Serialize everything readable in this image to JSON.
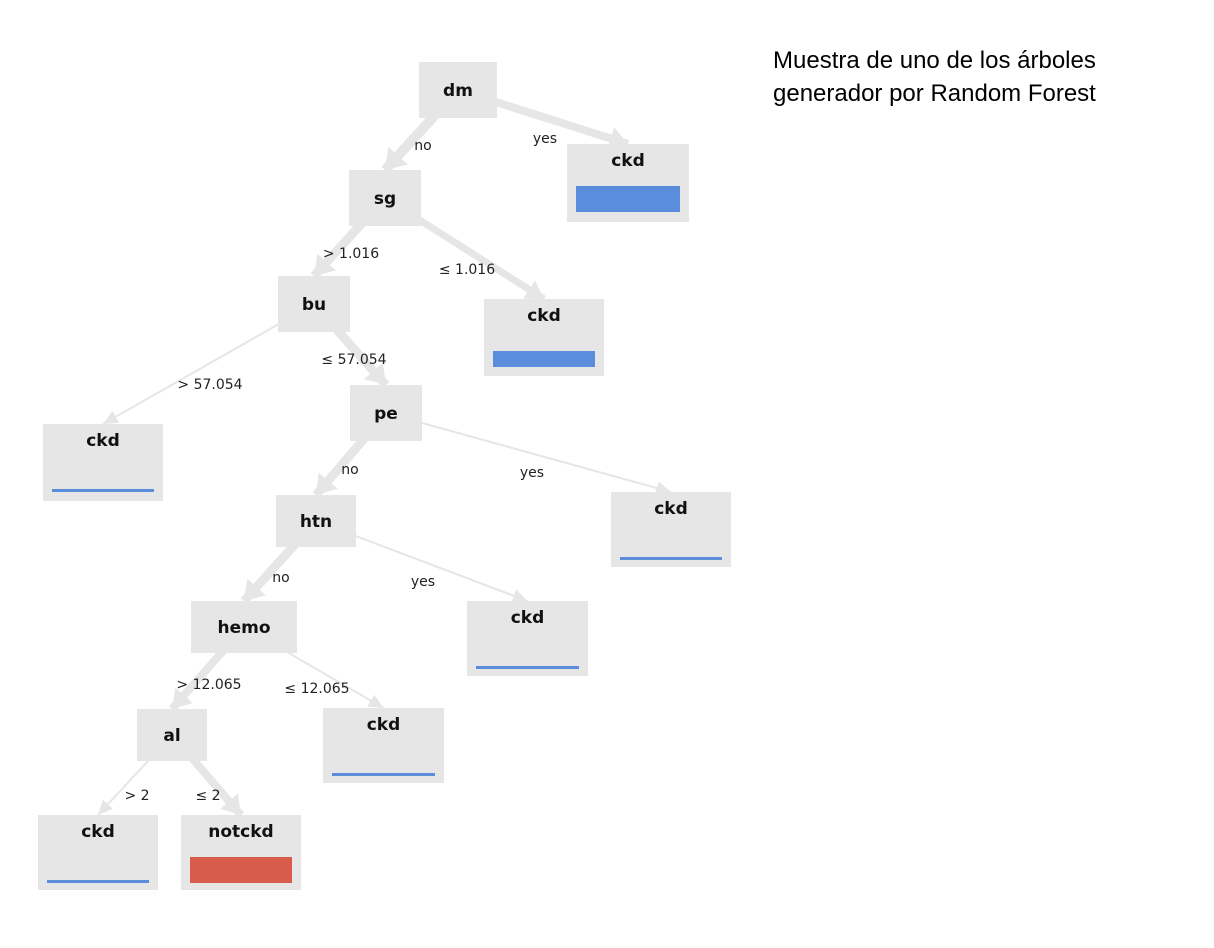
{
  "caption": {
    "line1": "Muestra de uno de los árboles",
    "line2": "generador por Random Forest"
  },
  "colors": {
    "node_bg": "#e6e6e6",
    "ckd_bar": "#5b8ddd",
    "notckd_bar": "#d95b4b",
    "edge": "#e6e6e6"
  },
  "tree": {
    "nodes": [
      {
        "id": "dm",
        "label": "dm",
        "kind": "split"
      },
      {
        "id": "sg",
        "label": "sg",
        "kind": "split"
      },
      {
        "id": "leaf_dm_yes",
        "label": "ckd",
        "kind": "leaf",
        "class": "ckd",
        "fill": 1.0
      },
      {
        "id": "bu",
        "label": "bu",
        "kind": "split"
      },
      {
        "id": "leaf_sg_le",
        "label": "ckd",
        "kind": "leaf",
        "class": "ckd",
        "fill": 0.6
      },
      {
        "id": "leaf_bu_gt",
        "label": "ckd",
        "kind": "leaf",
        "class": "ckd",
        "fill": 0.12
      },
      {
        "id": "pe",
        "label": "pe",
        "kind": "split"
      },
      {
        "id": "htn",
        "label": "htn",
        "kind": "split"
      },
      {
        "id": "leaf_pe_yes",
        "label": "ckd",
        "kind": "leaf",
        "class": "ckd",
        "fill": 0.12
      },
      {
        "id": "hemo",
        "label": "hemo",
        "kind": "split"
      },
      {
        "id": "leaf_htn_yes",
        "label": "ckd",
        "kind": "leaf",
        "class": "ckd",
        "fill": 0.12
      },
      {
        "id": "al",
        "label": "al",
        "kind": "split"
      },
      {
        "id": "leaf_hemo_le",
        "label": "ckd",
        "kind": "leaf",
        "class": "ckd",
        "fill": 0.12
      },
      {
        "id": "leaf_al_gt",
        "label": "ckd",
        "kind": "leaf",
        "class": "ckd",
        "fill": 0.12
      },
      {
        "id": "leaf_al_le",
        "label": "notckd",
        "kind": "leaf",
        "class": "notckd",
        "fill": 1.0
      }
    ],
    "edges": [
      {
        "from": "dm",
        "to": "sg",
        "label": "no",
        "weight": 0.9
      },
      {
        "from": "dm",
        "to": "leaf_dm_yes",
        "label": "yes",
        "weight": 0.7
      },
      {
        "from": "sg",
        "to": "bu",
        "label": "> 1.016",
        "weight": 0.8
      },
      {
        "from": "sg",
        "to": "leaf_sg_le",
        "label": "≤ 1.016",
        "weight": 0.6
      },
      {
        "from": "bu",
        "to": "leaf_bu_gt",
        "label": "> 57.054",
        "weight": 0.1
      },
      {
        "from": "bu",
        "to": "pe",
        "label": "≤ 57.054",
        "weight": 0.8
      },
      {
        "from": "pe",
        "to": "htn",
        "label": "no",
        "weight": 0.8
      },
      {
        "from": "pe",
        "to": "leaf_pe_yes",
        "label": "yes",
        "weight": 0.1
      },
      {
        "from": "htn",
        "to": "hemo",
        "label": "no",
        "weight": 0.8
      },
      {
        "from": "htn",
        "to": "leaf_htn_yes",
        "label": "yes",
        "weight": 0.1
      },
      {
        "from": "hemo",
        "to": "al",
        "label": "> 12.065",
        "weight": 0.7
      },
      {
        "from": "hemo",
        "to": "leaf_hemo_le",
        "label": "≤ 12.065",
        "weight": 0.1
      },
      {
        "from": "al",
        "to": "leaf_al_gt",
        "label": "> 2",
        "weight": 0.1
      },
      {
        "from": "al",
        "to": "leaf_al_le",
        "label": "≤ 2",
        "weight": 0.7
      }
    ]
  }
}
